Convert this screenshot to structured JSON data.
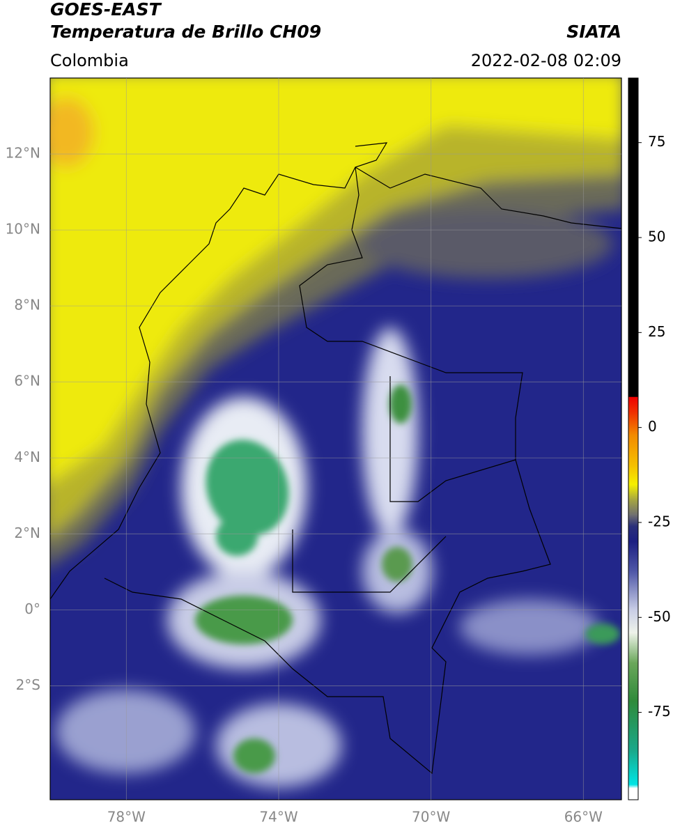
{
  "header": {
    "title": "GOES-EAST",
    "subtitle": "Temperatura de Brillo CH09",
    "region": "Colombia",
    "source": "SIATA",
    "datetime": "2022-02-08 02:09"
  },
  "map": {
    "lonlim": [
      -80,
      -65
    ],
    "latlim": [
      -5,
      14
    ],
    "lonticks": [
      {
        "value": -78,
        "label": "78°W"
      },
      {
        "value": -74,
        "label": "74°W"
      },
      {
        "value": -70,
        "label": "70°W"
      },
      {
        "value": -66,
        "label": "66°W"
      }
    ],
    "latticks": [
      {
        "value": 12,
        "label": "12°N"
      },
      {
        "value": 10,
        "label": "10°N"
      },
      {
        "value": 8,
        "label": "8°N"
      },
      {
        "value": 6,
        "label": "6°N"
      },
      {
        "value": 4,
        "label": "4°N"
      },
      {
        "value": 2,
        "label": "2°N"
      },
      {
        "value": 0,
        "label": "0°"
      },
      {
        "value": -2,
        "label": "2°S"
      }
    ],
    "grid": true
  },
  "colorbar": {
    "clim": [
      -98,
      92
    ],
    "ticks": [
      75,
      50,
      25,
      0,
      -25,
      -50,
      -75
    ],
    "colormap": [
      {
        "value": -98,
        "color": "#ffffff"
      },
      {
        "value": -95,
        "color": "#ffffff"
      },
      {
        "value": -94,
        "color": "#00e5e5"
      },
      {
        "value": -85,
        "color": "#1aa88a"
      },
      {
        "value": -72,
        "color": "#2f8a3a"
      },
      {
        "value": -62,
        "color": "#6aa75a"
      },
      {
        "value": -54,
        "color": "#eef3ea"
      },
      {
        "value": -48,
        "color": "#c8cde6"
      },
      {
        "value": -38,
        "color": "#5058a8"
      },
      {
        "value": -30,
        "color": "#1c1f82"
      },
      {
        "value": -26,
        "color": "#2a2f7a"
      },
      {
        "value": -23,
        "color": "#707070"
      },
      {
        "value": -19,
        "color": "#a6a640"
      },
      {
        "value": -15,
        "color": "#f5f000"
      },
      {
        "value": -10,
        "color": "#f5c000"
      },
      {
        "value": -2,
        "color": "#f28a00"
      },
      {
        "value": 4,
        "color": "#f03000"
      },
      {
        "value": 8,
        "color": "#ee0000"
      },
      {
        "value": 8.1,
        "color": "#000000"
      },
      {
        "value": 92,
        "color": "#000000"
      }
    ]
  }
}
